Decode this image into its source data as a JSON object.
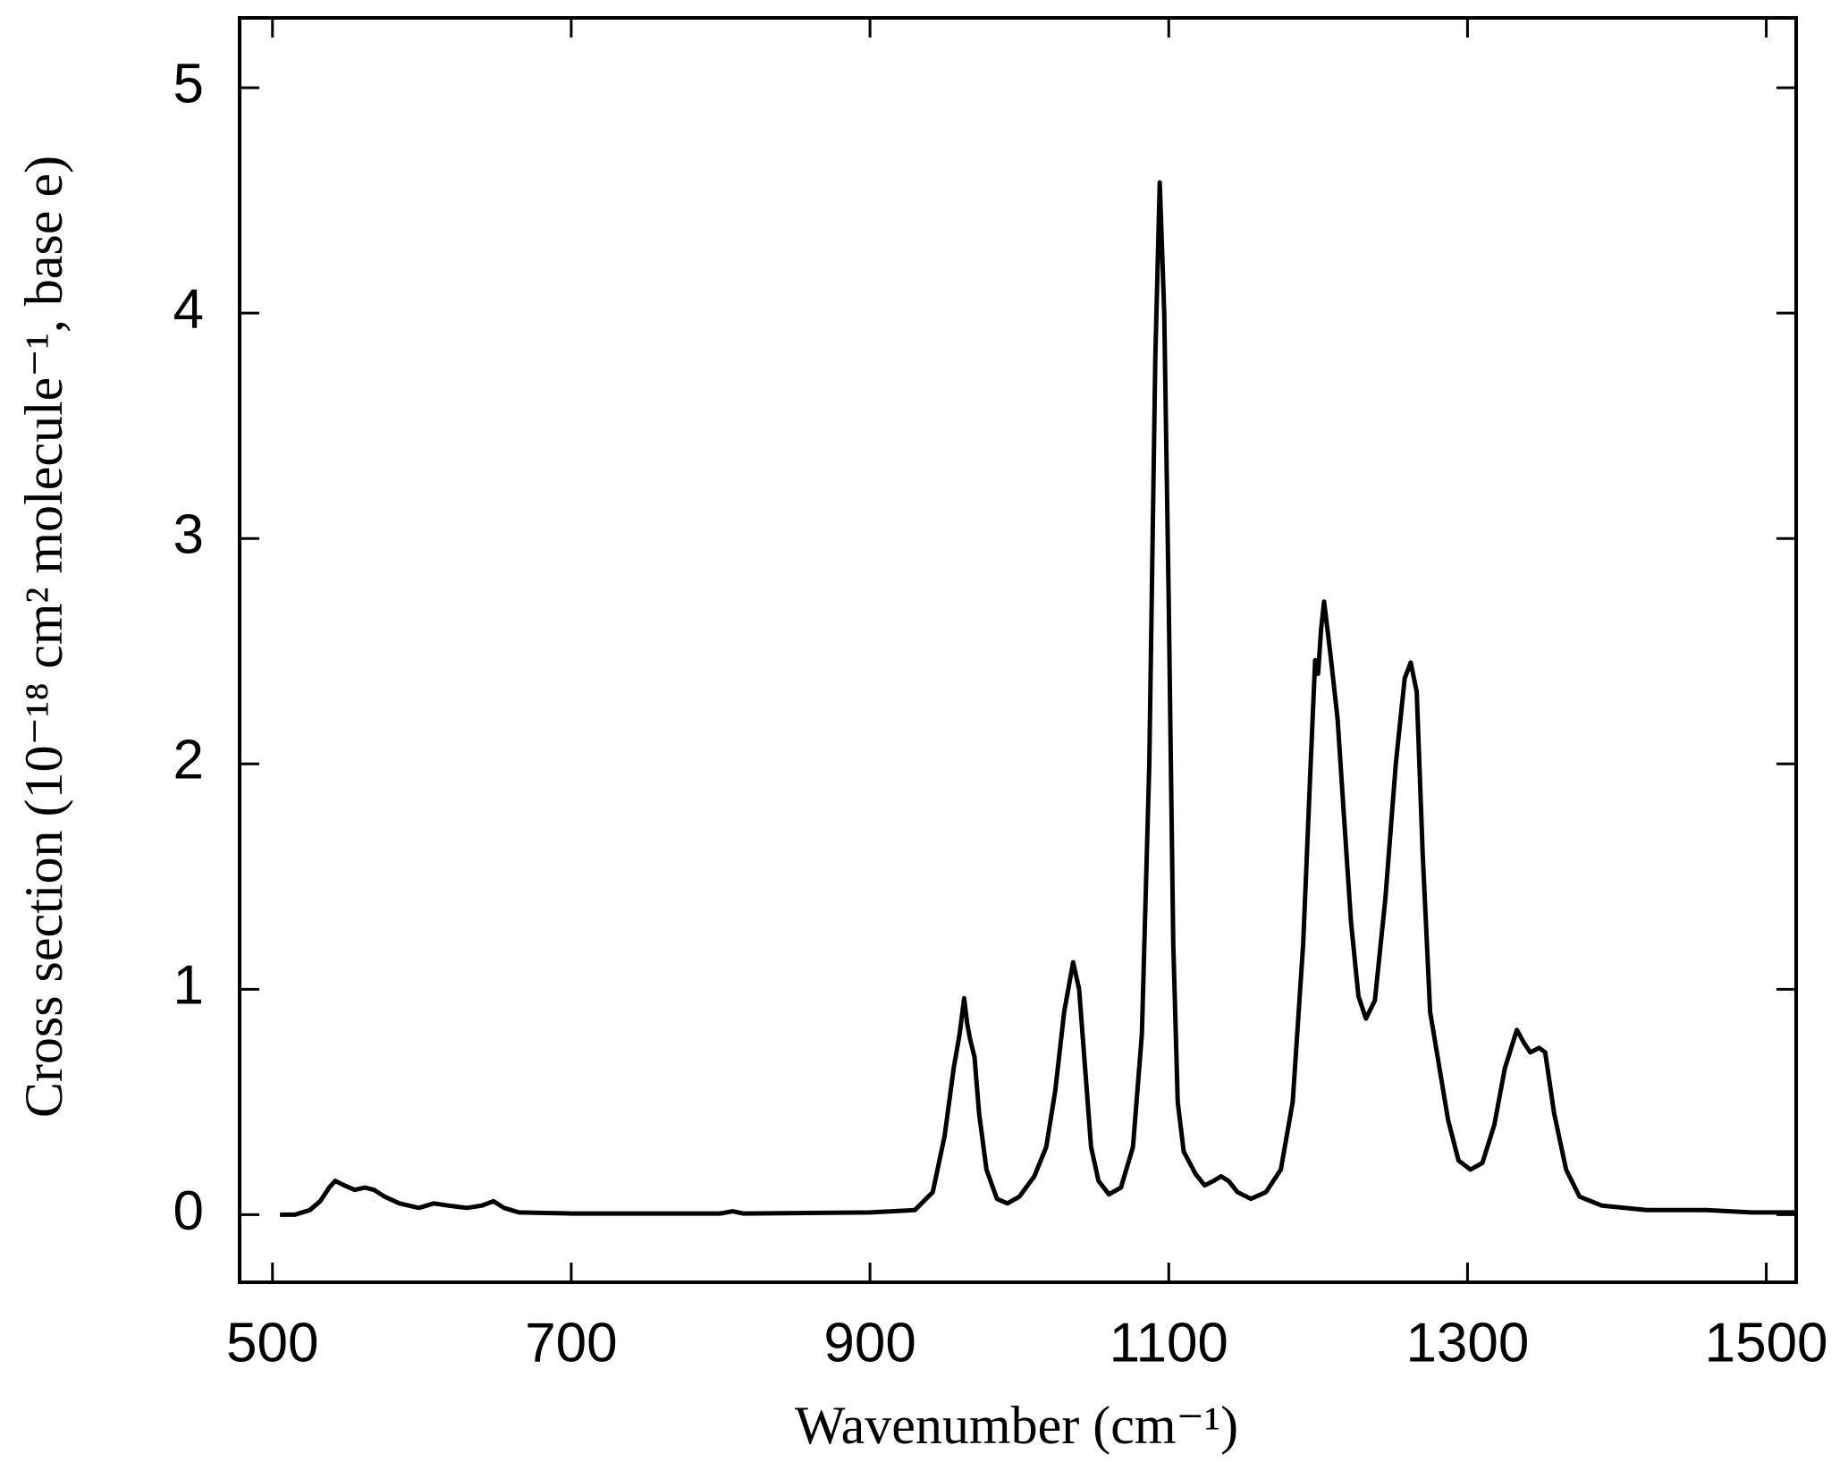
{
  "chart_data": {
    "type": "line",
    "xlabel": "Wavenumber (cm⁻¹)",
    "ylabel": "Cross section (10⁻¹⁸ cm² molecule⁻¹, base e)",
    "xlim": [
      478,
      1520
    ],
    "ylim": [
      -0.3,
      5.31
    ],
    "xticks": [
      500,
      700,
      900,
      1100,
      1300,
      1500
    ],
    "yticks": [
      0,
      1,
      2,
      3,
      4,
      5
    ],
    "series": [
      {
        "color": "#000000",
        "x": [
          505,
          515,
          525,
          532,
          538,
          542,
          548,
          555,
          562,
          568,
          575,
          585,
          598,
          608,
          618,
          630,
          640,
          648,
          655,
          665,
          700,
          750,
          800,
          808,
          815,
          900,
          930,
          942,
          950,
          956,
          960,
          963,
          965,
          967,
          970,
          973,
          978,
          985,
          992,
          1000,
          1010,
          1018,
          1024,
          1030,
          1036,
          1040,
          1044,
          1048,
          1053,
          1060,
          1068,
          1076,
          1082,
          1087,
          1091,
          1094,
          1097,
          1100,
          1103,
          1106,
          1110,
          1118,
          1124,
          1130,
          1135,
          1140,
          1146,
          1155,
          1165,
          1175,
          1183,
          1190,
          1195,
          1198,
          1200,
          1202,
          1204,
          1208,
          1213,
          1217,
          1222,
          1227,
          1232,
          1238,
          1245,
          1252,
          1258,
          1262,
          1266,
          1270,
          1275,
          1280,
          1287,
          1294,
          1302,
          1310,
          1318,
          1325,
          1333,
          1338,
          1342,
          1348,
          1352,
          1358,
          1366,
          1375,
          1390,
          1420,
          1460,
          1490,
          1520
        ],
        "values": [
          0.0,
          0.0,
          0.02,
          0.06,
          0.12,
          0.15,
          0.13,
          0.11,
          0.12,
          0.11,
          0.08,
          0.05,
          0.03,
          0.05,
          0.04,
          0.03,
          0.04,
          0.06,
          0.03,
          0.01,
          0.005,
          0.005,
          0.005,
          0.015,
          0.005,
          0.01,
          0.02,
          0.1,
          0.35,
          0.65,
          0.8,
          0.96,
          0.85,
          0.78,
          0.7,
          0.45,
          0.2,
          0.07,
          0.05,
          0.08,
          0.17,
          0.3,
          0.55,
          0.9,
          1.12,
          1.0,
          0.65,
          0.3,
          0.15,
          0.09,
          0.12,
          0.3,
          0.8,
          2.0,
          3.8,
          4.58,
          4.0,
          2.7,
          1.2,
          0.5,
          0.28,
          0.18,
          0.13,
          0.15,
          0.17,
          0.15,
          0.1,
          0.07,
          0.1,
          0.2,
          0.5,
          1.2,
          2.0,
          2.46,
          2.4,
          2.6,
          2.72,
          2.5,
          2.2,
          1.8,
          1.3,
          0.97,
          0.87,
          0.95,
          1.4,
          2.0,
          2.38,
          2.45,
          2.32,
          1.6,
          0.9,
          0.7,
          0.42,
          0.24,
          0.2,
          0.23,
          0.4,
          0.65,
          0.82,
          0.76,
          0.72,
          0.74,
          0.72,
          0.45,
          0.2,
          0.08,
          0.04,
          0.02,
          0.02,
          0.01,
          0.01
        ]
      }
    ]
  }
}
